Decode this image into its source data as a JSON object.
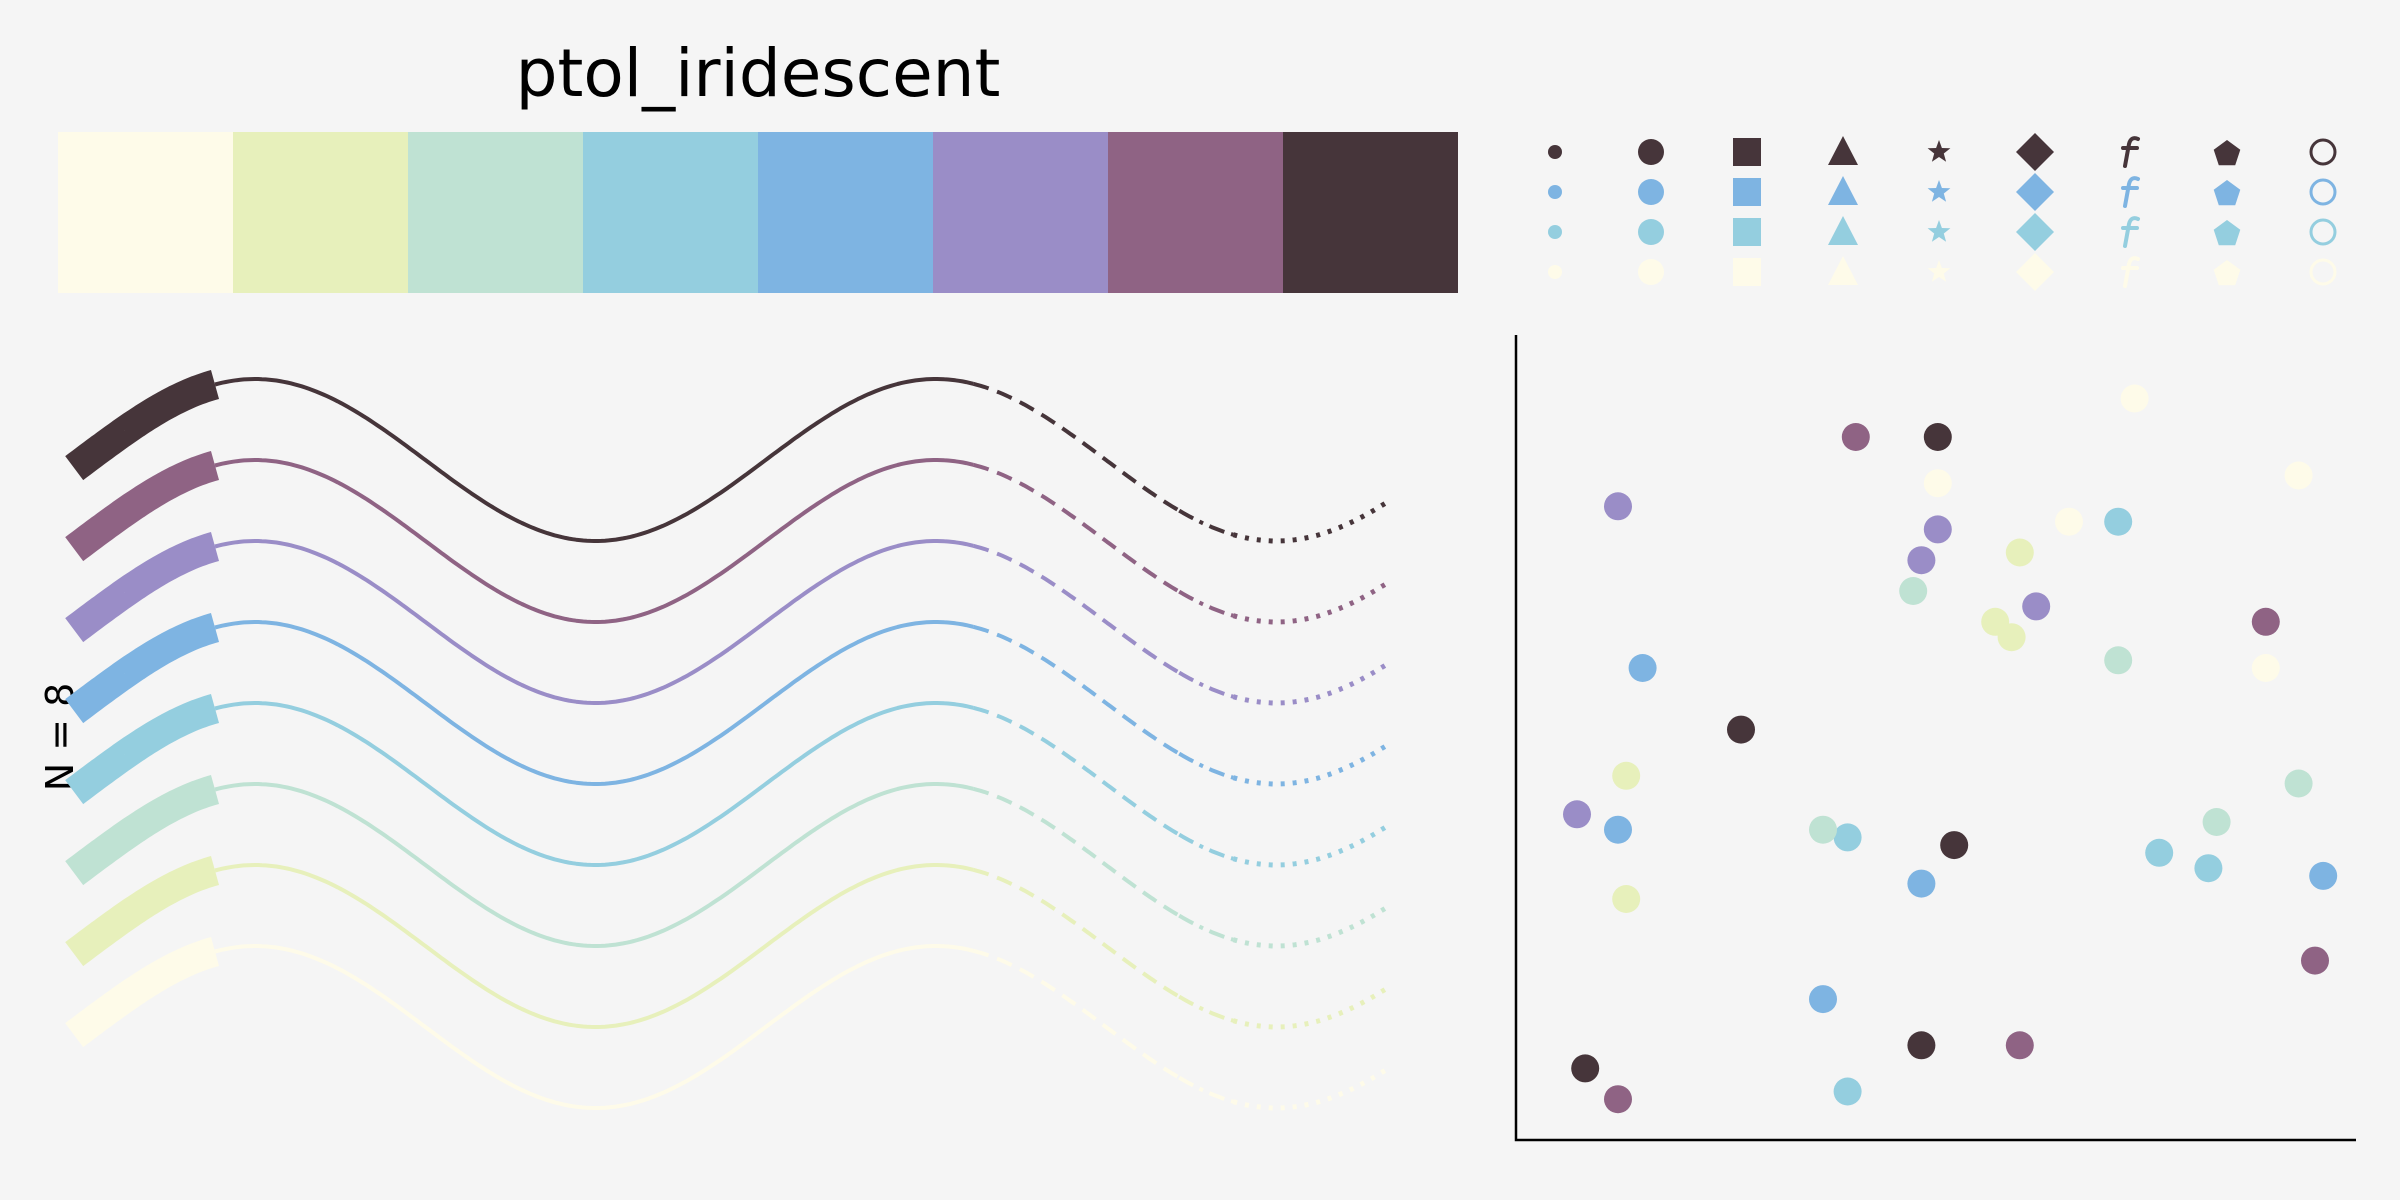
{
  "title": "ptol_iridescent",
  "n_label": "N = 8",
  "palette": {
    "name": "ptol_iridescent",
    "colors": [
      "#FEFBE9",
      "#E7F0BB",
      "#BFE2D3",
      "#94CEDF",
      "#7EB4E2",
      "#9A8DC7",
      "#8F6384",
      "#46353A"
    ]
  },
  "marker_grid": {
    "markers": [
      "point",
      "circle",
      "square",
      "triangle-up",
      "star",
      "diamond",
      "f-glyph",
      "pentagon",
      "open-circle"
    ],
    "row_colors": [
      "#46353A",
      "#7EB4E2",
      "#94CEDF",
      "#FEFBE9"
    ]
  },
  "chart_data": [
    {
      "type": "line",
      "panel": "sine-waves",
      "function": "sin",
      "x_range": [
        0,
        12
      ],
      "line_count": 8,
      "linestyles": [
        "thick",
        "solid",
        "dashed",
        "dash-dot",
        "dotted"
      ],
      "series_colors": [
        "#46353A",
        "#8F6384",
        "#9A8DC7",
        "#7EB4E2",
        "#94CEDF",
        "#BFE2D3",
        "#E7F0BB",
        "#FEFBE9"
      ]
    },
    {
      "type": "scatter",
      "panel": "random-scatter",
      "xlim": [
        0,
        100
      ],
      "ylim": [
        0,
        100
      ],
      "series": [
        {
          "color": "#46353A",
          "points": [
            [
              49,
              90
            ],
            [
              25,
              52
            ],
            [
              51,
              37
            ],
            [
              47,
              11
            ],
            [
              6,
              8
            ]
          ]
        },
        {
          "color": "#8F6384",
          "points": [
            [
              39,
              90
            ],
            [
              89,
              66
            ],
            [
              95,
              22
            ],
            [
              59,
              11
            ],
            [
              10,
              4
            ]
          ]
        },
        {
          "color": "#9A8DC7",
          "points": [
            [
              10,
              81
            ],
            [
              49,
              78
            ],
            [
              47,
              74
            ],
            [
              61,
              68
            ],
            [
              5,
              41
            ]
          ]
        },
        {
          "color": "#7EB4E2",
          "points": [
            [
              13,
              60
            ],
            [
              10,
              39
            ],
            [
              47,
              32
            ],
            [
              96,
              33
            ],
            [
              35,
              17
            ]
          ]
        },
        {
          "color": "#94CEDF",
          "points": [
            [
              71,
              79
            ],
            [
              38,
              38
            ],
            [
              76,
              36
            ],
            [
              82,
              34
            ],
            [
              38,
              5
            ]
          ]
        },
        {
          "color": "#BFE2D3",
          "points": [
            [
              46,
              70
            ],
            [
              71,
              61
            ],
            [
              93,
              45
            ],
            [
              83,
              40
            ],
            [
              35,
              39
            ]
          ]
        },
        {
          "color": "#E7F0BB",
          "points": [
            [
              59,
              75
            ],
            [
              56,
              66
            ],
            [
              58,
              64
            ],
            [
              11,
              46
            ],
            [
              11,
              30
            ]
          ]
        },
        {
          "color": "#FEFBE9",
          "points": [
            [
              73,
              95
            ],
            [
              93,
              85
            ],
            [
              49,
              84
            ],
            [
              65,
              79
            ],
            [
              89,
              60
            ]
          ]
        }
      ]
    }
  ]
}
